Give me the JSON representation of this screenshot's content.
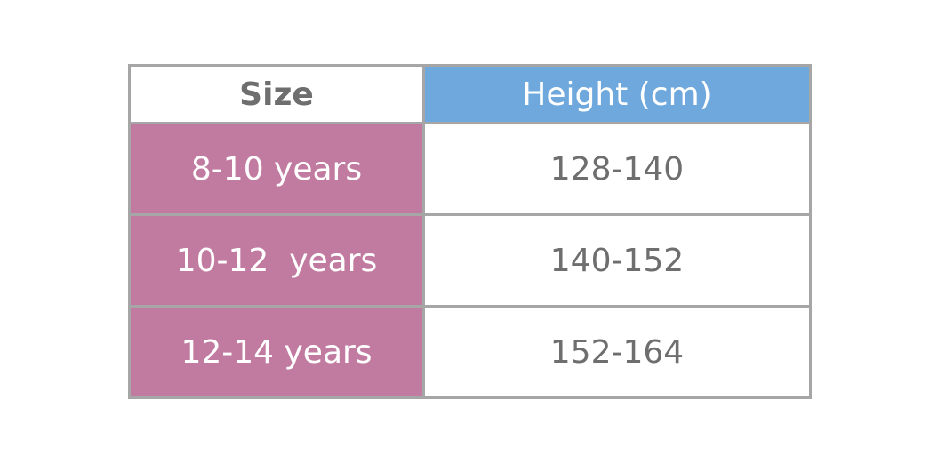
{
  "table": {
    "header": [
      "Size",
      "Height (cm)"
    ],
    "rows": [
      [
        "8-10 years",
        "128-140"
      ],
      [
        "10-12  years",
        "140-152"
      ],
      [
        "12-14 years",
        "152-164"
      ]
    ]
  }
}
